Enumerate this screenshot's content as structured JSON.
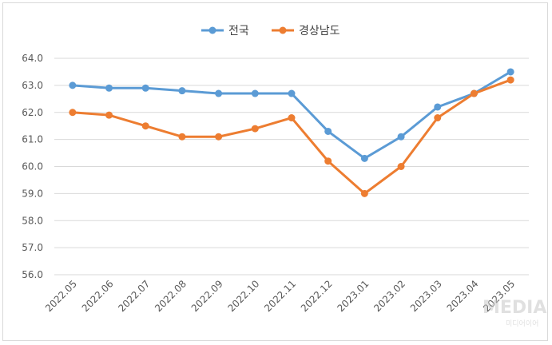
{
  "chart_data": {
    "type": "line",
    "title": "",
    "xlabel": "",
    "ylabel": "",
    "categories": [
      "2022.05",
      "2022.06",
      "2022.07",
      "2022.08",
      "2022.09",
      "2022.10",
      "2022.11",
      "2022.12",
      "2023.01",
      "2023.02",
      "2023.03",
      "2023.04",
      "2023.05"
    ],
    "ylim": [
      56.0,
      64.0
    ],
    "yticks": [
      "56.0",
      "57.0",
      "58.0",
      "59.0",
      "60.0",
      "61.0",
      "62.0",
      "63.0",
      "64.0"
    ],
    "grid": true,
    "legend_position": "top",
    "series": [
      {
        "name": "전국",
        "color": "#5b9bd5",
        "values": [
          63.0,
          62.9,
          62.9,
          62.8,
          62.7,
          62.7,
          62.7,
          61.3,
          60.3,
          61.1,
          62.2,
          62.7,
          63.5
        ]
      },
      {
        "name": "경상남도",
        "color": "#ed7d31",
        "values": [
          62.0,
          61.9,
          61.5,
          61.1,
          61.1,
          61.4,
          61.8,
          60.2,
          59.0,
          60.0,
          61.8,
          62.7,
          63.2
        ]
      }
    ]
  },
  "watermark": {
    "text": "MEDIA",
    "subtext": "미디어이어"
  }
}
